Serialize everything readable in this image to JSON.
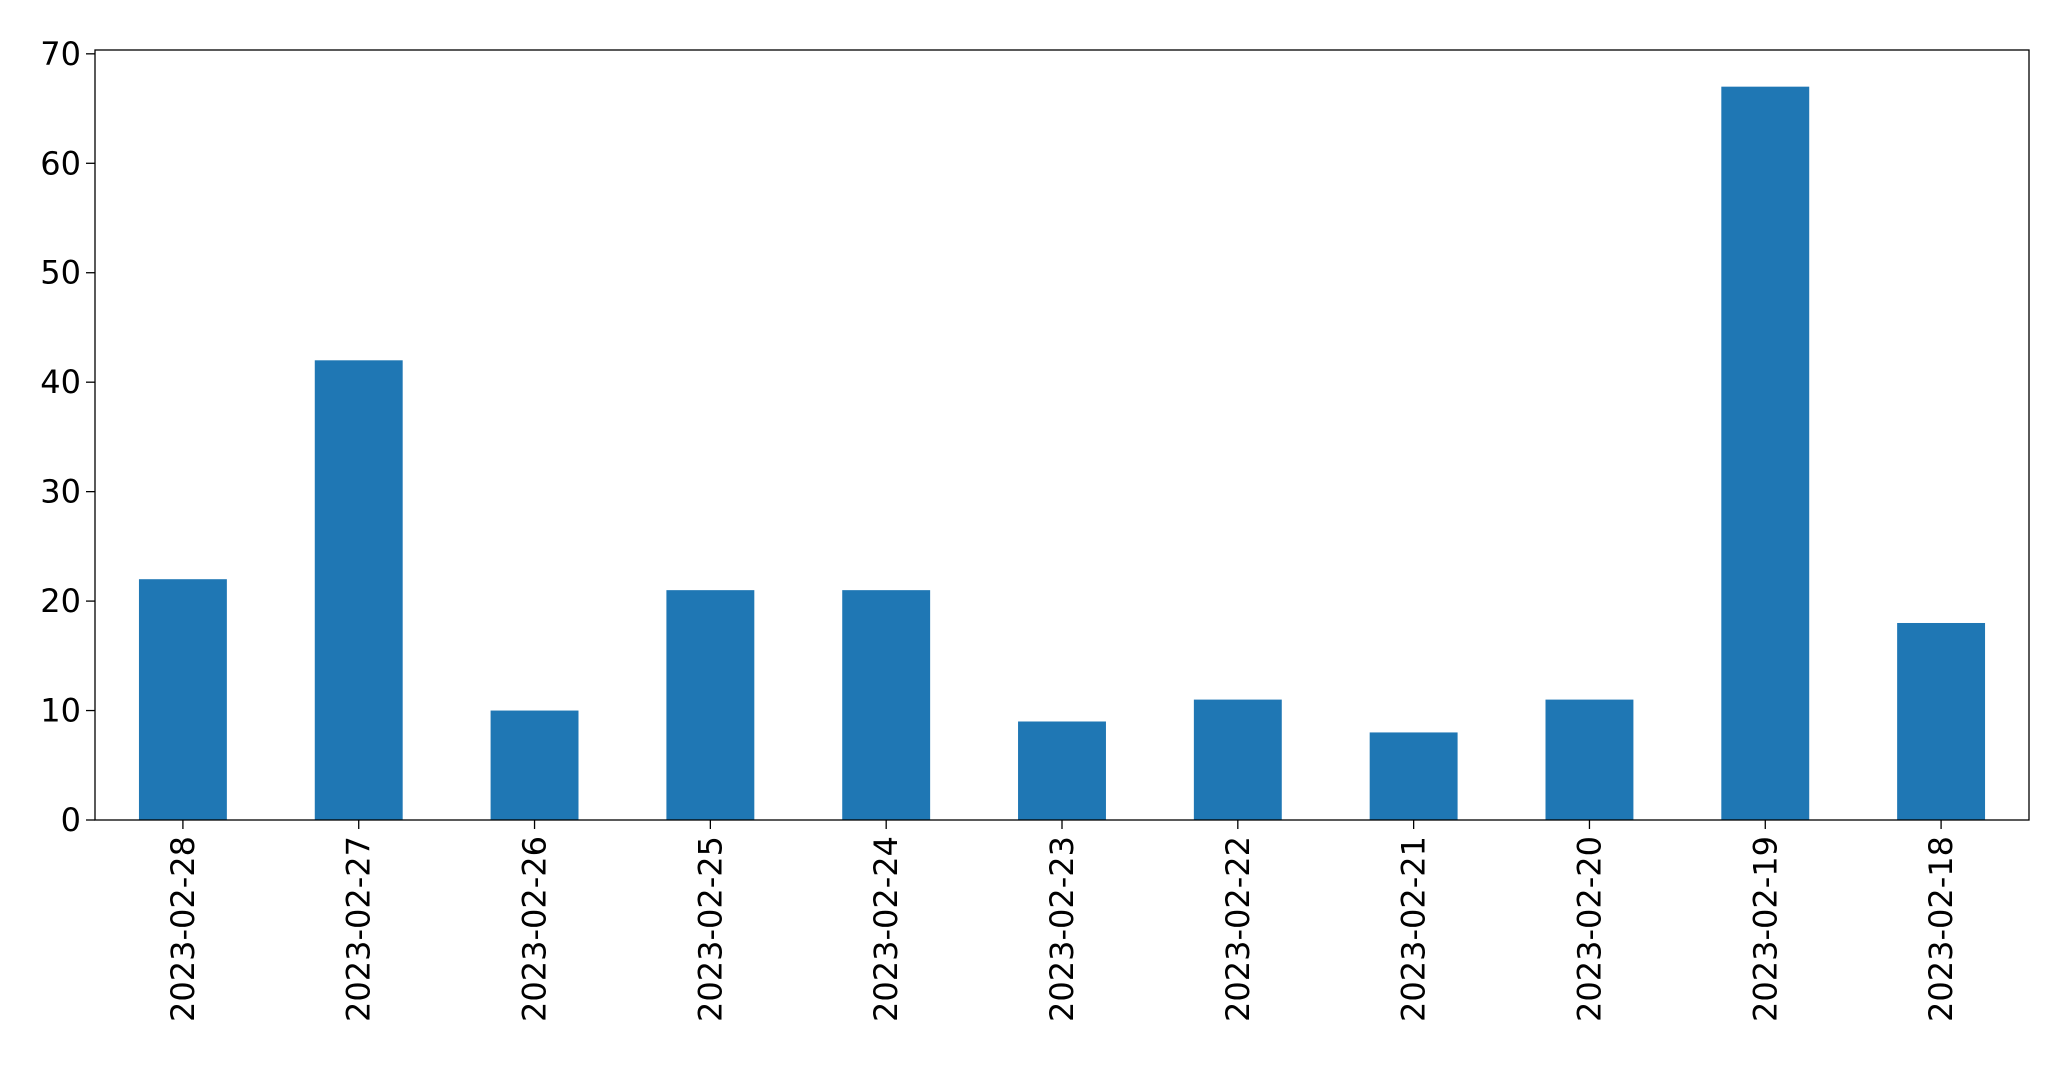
{
  "chart_data": {
    "type": "bar",
    "categories": [
      "2023-02-28",
      "2023-02-27",
      "2023-02-26",
      "2023-02-25",
      "2023-02-24",
      "2023-02-23",
      "2023-02-22",
      "2023-02-21",
      "2023-02-20",
      "2023-02-19",
      "2023-02-18"
    ],
    "values": [
      22,
      42,
      10,
      21,
      21,
      9,
      11,
      8,
      11,
      67,
      18
    ],
    "color": "#1f77b4",
    "ylim": [
      0,
      70.35
    ],
    "yticks": [
      0,
      10,
      20,
      30,
      40,
      50,
      60,
      70
    ],
    "grid": false
  }
}
